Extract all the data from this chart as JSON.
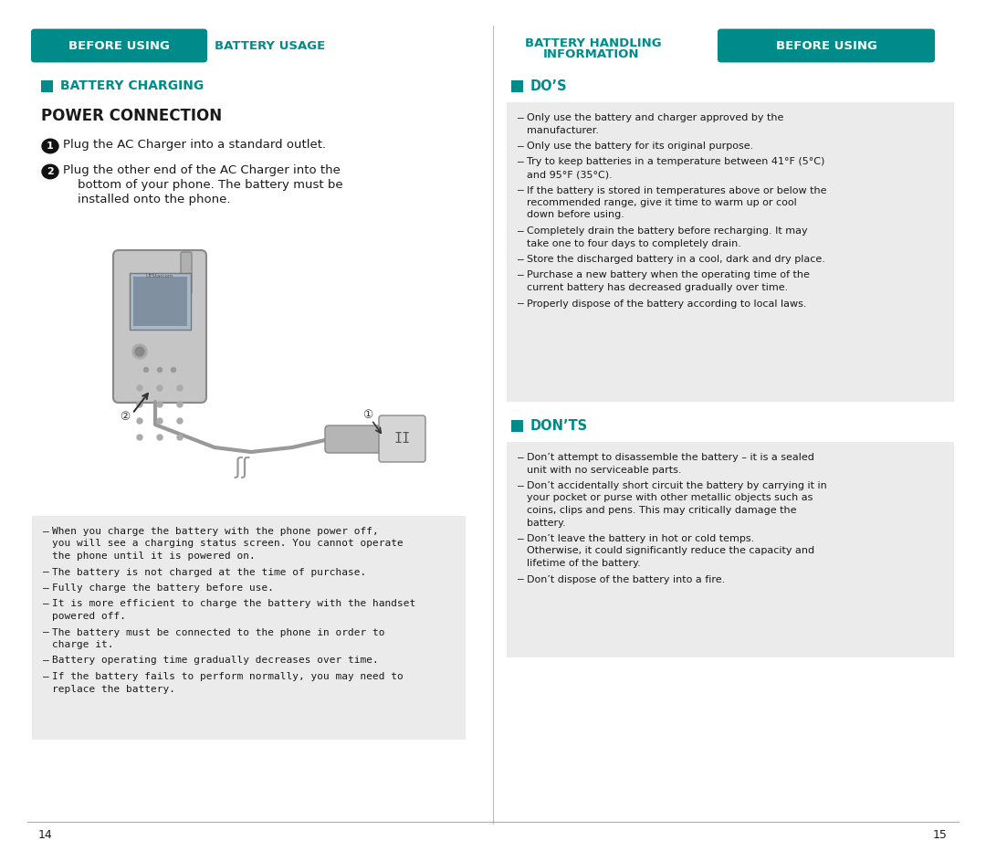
{
  "teal_color": "#008B8B",
  "teal_text": "#008B8B",
  "bg_gray": "#ebebeb",
  "bg_white": "#ffffff",
  "text_black": "#1a1a1a",
  "header_left_box": "BEFORE USING",
  "header_left_tab": "BATTERY USAGE",
  "header_right_tab_line1": "BATTERY HANDLING",
  "header_right_tab_line2": "INFORMATION",
  "header_right_box": "BEFORE USING",
  "section_left_title": "BATTERY CHARGING",
  "subsection_left": "POWER CONNECTION",
  "step1": "Plug the AC Charger into a standard outlet.",
  "step2_line1": "Plug the other end of the AC Charger into the",
  "step2_line2": "bottom of your phone. The battery must be",
  "step2_line3": "installed onto the phone.",
  "left_bullets": [
    "When you charge the battery with the phone power off,\nyou will see a charging status screen. You cannot operate\nthe phone until it is powered on.",
    "The battery is not charged at the time of purchase.",
    "Fully charge the battery before use.",
    "It is more efficient to charge the battery with the handset\npowered off.",
    "The battery must be connected to the phone in order to\ncharge it.",
    "Battery operating time gradually decreases over time.",
    "If the battery fails to perform normally, you may need to\nreplace the battery."
  ],
  "section_right_dos": "DO’S",
  "dos_bullets": [
    "Only use the battery and charger approved by the\nmanufacturer.",
    "Only use the battery for its original purpose.",
    "Try to keep batteries in a temperature between 41°F (5°C)\nand 95°F (35°C).",
    "If the battery is stored in temperatures above or below the\nrecommended range, give it time to warm up or cool\ndown before using.",
    "Completely drain the battery before recharging. It may\ntake one to four days to completely drain.",
    "Store the discharged battery in a cool, dark and dry place.",
    "Purchase a new battery when the operating time of the\ncurrent battery has decreased gradually over time.",
    "Properly dispose of the battery according to local laws."
  ],
  "section_right_donts": "DON’TS",
  "donts_bullets": [
    "Don’t attempt to disassemble the battery – it is a sealed\nunit with no serviceable parts.",
    "Don’t accidentally short circuit the battery by carrying it in\nyour pocket or purse with other metallic objects such as\ncoins, clips and pens. This may critically damage the\nbattery.",
    "Don’t leave the battery in hot or cold temps.\nOtherwise, it could significantly reduce the capacity and\nlifetime of the battery.",
    "Don’t dispose of the battery into a fire."
  ],
  "page_left": "14",
  "page_right": "15"
}
